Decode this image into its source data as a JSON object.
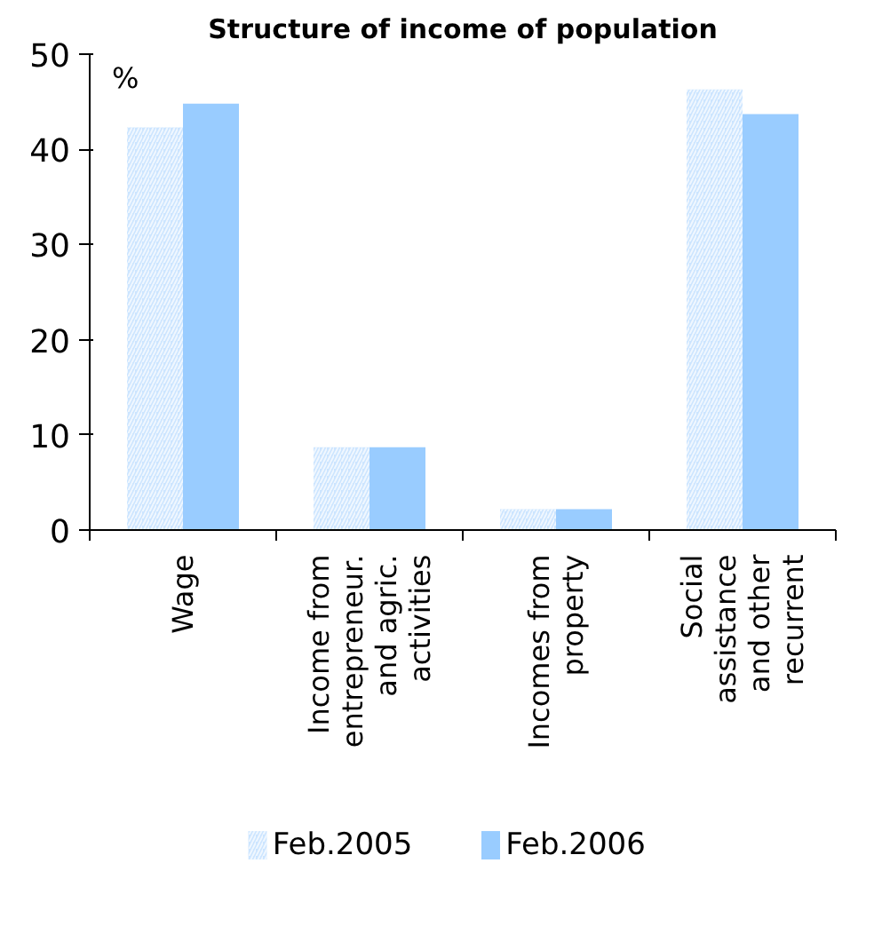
{
  "chart_data": {
    "type": "bar",
    "title": "Structure of income of population",
    "categories": [
      "Wage",
      "Income from entrepreneur. and agric. activities",
      "Incomes from property",
      "Social assistance and other recurrent"
    ],
    "series": [
      {
        "name": "Feb.2005",
        "color": "#cce5ff",
        "values": [
          42.3,
          8.7,
          2.2,
          46.3
        ]
      },
      {
        "name": "Feb.2006",
        "color": "#99ccff",
        "values": [
          44.8,
          8.7,
          2.2,
          43.7
        ]
      }
    ],
    "ylim": [
      0,
      50
    ],
    "yticks": [
      0,
      10,
      20,
      30,
      40,
      50
    ],
    "grid": false,
    "legend": "bottom",
    "annotations": [
      "%"
    ]
  }
}
